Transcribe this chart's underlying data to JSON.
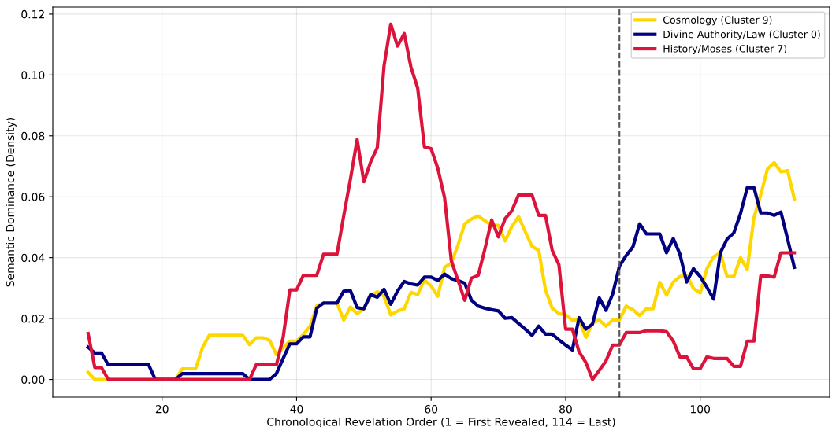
{
  "chart_data": {
    "type": "line",
    "xlabel": "Chronological Revelation Order (1 = First Revealed, 114 = Last)",
    "ylabel": "Semantic Dominance (Density)",
    "x": [
      9,
      10,
      11,
      12,
      13,
      14,
      15,
      16,
      17,
      18,
      19,
      20,
      21,
      22,
      23,
      24,
      25,
      26,
      27,
      28,
      29,
      30,
      31,
      32,
      33,
      34,
      35,
      36,
      37,
      38,
      39,
      40,
      41,
      42,
      43,
      44,
      45,
      46,
      47,
      48,
      49,
      50,
      51,
      52,
      53,
      54,
      55,
      56,
      57,
      58,
      59,
      60,
      61,
      62,
      63,
      64,
      65,
      66,
      67,
      68,
      69,
      70,
      71,
      72,
      73,
      74,
      75,
      76,
      77,
      78,
      79,
      80,
      81,
      82,
      83,
      84,
      85,
      86,
      87,
      88,
      89,
      90,
      91,
      92,
      93,
      94,
      95,
      96,
      97,
      98,
      99,
      100,
      101,
      102,
      103,
      104,
      105,
      106,
      107,
      108,
      109,
      110,
      111,
      112,
      113,
      114
    ],
    "series": [
      {
        "name": "Cosmology (Cluster 9)",
        "color": "#ffd700",
        "values": [
          0.0023,
          0,
          0,
          0,
          0,
          0,
          0,
          0,
          0,
          0,
          0,
          0,
          0,
          0,
          0.0035,
          0.0035,
          0.0035,
          0.0104,
          0.0145,
          0.0145,
          0.0145,
          0.0145,
          0.0145,
          0.0145,
          0.0114,
          0.0137,
          0.0137,
          0.0128,
          0.0082,
          0.0104,
          0.0126,
          0.0126,
          0.0147,
          0.0175,
          0.0242,
          0.0251,
          null,
          0.0251,
          0.0195,
          0.0238,
          0.0216,
          0.0232,
          0.0273,
          0.0288,
          0.0273,
          0.0212,
          0.0225,
          0.0232,
          0.0286,
          0.0279,
          0.0327,
          0.0307,
          0.0273,
          0.0368,
          0.0383,
          0.0442,
          0.0511,
          0.0527,
          0.0537,
          0.0521,
          0.0506,
          0.0506,
          0.0455,
          0.0502,
          0.0535,
          0.0485,
          0.0437,
          0.0424,
          0.0294,
          0.0234,
          0.0216,
          0.0212,
          0.0195,
          0.0195,
          0.0138,
          0.0186,
          0.0195,
          0.0175,
          0.0195,
          0.0195,
          0.0241,
          0.0229,
          0.021,
          0.0232,
          0.0232,
          0.0319,
          0.0277,
          0.032,
          0.0338,
          0.0342,
          0.0299,
          0.0284,
          0.0364,
          0.0403,
          0.0416,
          0.0338,
          0.0338,
          0.04,
          0.0362,
          0.0532,
          0.0606,
          0.0691,
          0.0712,
          0.0682,
          0.0686,
          0.0593
        ]
      },
      {
        "name": "Divine Authority/Law (Cluster 0)",
        "color": "#000080",
        "values": [
          0.0106,
          0.0087,
          0.0087,
          0.0048,
          0.0048,
          0.0048,
          0.0048,
          0.0048,
          0.0048,
          0.0048,
          0,
          0,
          0,
          0,
          0.0019,
          0.0019,
          0.0019,
          0.0019,
          0.0019,
          0.0019,
          0.0019,
          0.0019,
          0.0019,
          0.0019,
          0,
          0,
          0,
          0,
          0.0019,
          0.0069,
          0.0117,
          0.0117,
          0.014,
          0.014,
          0.0234,
          0.0251,
          0.0251,
          0.0251,
          0.029,
          0.0292,
          0.0236,
          0.0232,
          0.0279,
          0.027,
          0.0296,
          0.0247,
          0.029,
          0.0322,
          0.0314,
          0.031,
          0.0336,
          0.0336,
          0.0325,
          0.0346,
          0.0331,
          0.0325,
          0.0316,
          0.026,
          0.0241,
          0.0234,
          0.0229,
          0.0225,
          0.0201,
          0.0203,
          0.0184,
          0.0165,
          0.0145,
          0.0175,
          0.0149,
          0.0149,
          0.013,
          0.0113,
          0.0097,
          0.0203,
          0.0165,
          0.0182,
          0.0268,
          0.0227,
          0.0281,
          0.0372,
          0.0407,
          0.0435,
          0.0511,
          0.0478,
          0.0478,
          0.0478,
          0.0416,
          0.0463,
          0.0411,
          0.032,
          0.0364,
          0.0338,
          0.0303,
          0.0264,
          0.0416,
          0.0461,
          0.0481,
          0.0545,
          0.063,
          0.063,
          0.0547,
          0.0547,
          0.0539,
          0.055,
          0.0461,
          0.0368
        ]
      },
      {
        "name": "History/Moses (Cluster 7)",
        "color": "#dc143c",
        "values": [
          0.0151,
          0.0039,
          0.0039,
          0,
          0,
          0,
          0,
          0,
          0,
          0,
          0,
          0,
          0,
          0,
          0,
          0,
          0,
          0,
          0,
          0,
          0,
          0,
          0,
          0,
          0,
          0.0048,
          0.0048,
          0.0048,
          0.0048,
          0.0138,
          0.0294,
          0.0294,
          0.0342,
          0.0342,
          0.0342,
          0.0411,
          0.0411,
          0.0411,
          0.0537,
          0.0658,
          0.0788,
          0.0649,
          0.0714,
          0.0762,
          0.103,
          0.1167,
          0.1095,
          0.1136,
          0.1026,
          0.0957,
          0.0764,
          0.0758,
          0.0693,
          0.0597,
          0.039,
          0.0325,
          0.026,
          0.0333,
          0.0342,
          0.0429,
          0.0524,
          0.0468,
          0.0528,
          0.0554,
          0.0606,
          0.0606,
          0.0606,
          0.0539,
          0.0539,
          0.0424,
          0.0377,
          0.0165,
          0.0165,
          0.0091,
          0.0056,
          0,
          0.003,
          0.0061,
          0.0113,
          0.0113,
          0.0154,
          0.0154,
          0.0154,
          0.016,
          0.016,
          0.016,
          0.0157,
          0.0126,
          0.0074,
          0.0074,
          0.0035,
          0.0035,
          0.0074,
          0.0069,
          0.0069,
          0.0069,
          0.0043,
          0.0043,
          0.0126,
          0.0126,
          0.034,
          0.034,
          0.0336,
          0.0416,
          0.0416,
          0.0416
        ]
      }
    ],
    "xlim": [
      3.75,
      119.25
    ],
    "ylim": [
      -0.0058,
      0.1223
    ],
    "xticks": [
      20,
      40,
      60,
      80,
      100
    ],
    "yticks": [
      {
        "value": 0,
        "label": "0.00"
      },
      {
        "value": 0.02,
        "label": "0.02"
      },
      {
        "value": 0.04,
        "label": "0.04"
      },
      {
        "value": 0.06,
        "label": "0.06"
      },
      {
        "value": 0.08,
        "label": "0.08"
      },
      {
        "value": 0.1,
        "label": "0.10"
      },
      {
        "value": 0.12,
        "label": "0.12"
      }
    ],
    "ref_lines": [
      {
        "axis": "x",
        "value": 88,
        "label": null,
        "color": "#555555",
        "line_style": "dashed"
      }
    ],
    "grid": true,
    "legend": "top right",
    "marker": "none",
    "line_style": "solid"
  }
}
